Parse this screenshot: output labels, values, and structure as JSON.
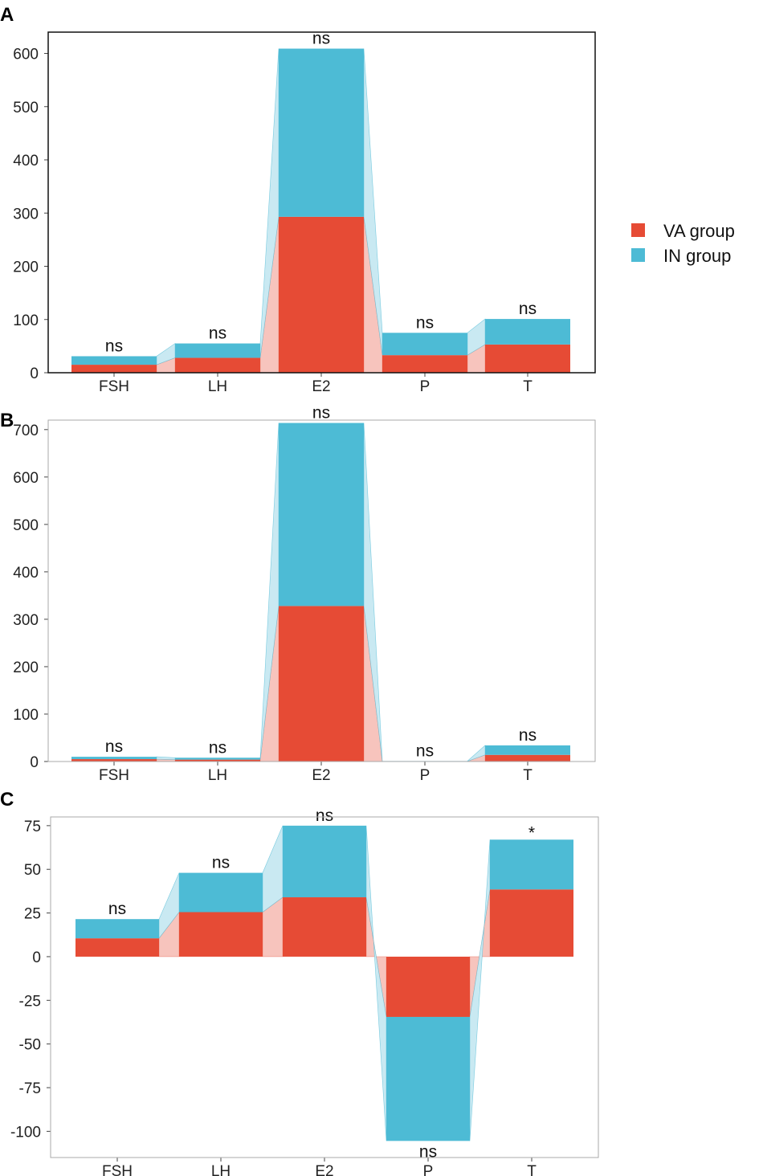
{
  "legend": {
    "items": [
      {
        "name": "VA group",
        "color": "#E64B35"
      },
      {
        "name": "IN group",
        "color": "#4DBBD5"
      }
    ],
    "placement": "right"
  },
  "colors": {
    "va": "#E64B35",
    "in": "#4DBBD5",
    "va_link": "#F7C4BD",
    "in_link": "#C9E9F2"
  },
  "chart_data": [
    {
      "panel": "A",
      "type": "bar",
      "stacked": true,
      "categories": [
        "FSH",
        "LH",
        "E2",
        "P",
        "T"
      ],
      "series": [
        {
          "name": "VA group",
          "values": [
            15,
            28,
            293,
            33,
            53
          ]
        },
        {
          "name": "IN group",
          "values": [
            16,
            27,
            316,
            42,
            48
          ]
        }
      ],
      "significance": [
        "ns",
        "ns",
        "ns",
        "ns",
        "ns"
      ],
      "yticks": [
        0,
        100,
        200,
        300,
        400,
        500,
        600
      ],
      "ylim": [
        0,
        640
      ],
      "frame": "dark"
    },
    {
      "panel": "B",
      "type": "bar",
      "stacked": true,
      "categories": [
        "FSH",
        "LH",
        "E2",
        "P",
        "T"
      ],
      "series": [
        {
          "name": "VA group",
          "values": [
            5,
            4,
            328,
            0.5,
            14
          ]
        },
        {
          "name": "IN group",
          "values": [
            5,
            4,
            386,
            0.5,
            20
          ]
        }
      ],
      "significance": [
        "ns",
        "ns",
        "ns",
        "ns",
        "ns"
      ],
      "yticks": [
        0,
        100,
        200,
        300,
        400,
        500,
        600,
        700
      ],
      "ylim": [
        0,
        720
      ],
      "frame": "light"
    },
    {
      "panel": "C",
      "type": "bar",
      "stacked": true,
      "categories": [
        "FSH",
        "LH",
        "E2",
        "P",
        "T"
      ],
      "series": [
        {
          "name": "VA group",
          "values": [
            10.5,
            25.5,
            34,
            -34.5,
            38.5
          ]
        },
        {
          "name": "IN group",
          "values": [
            11,
            22.5,
            41,
            -71,
            28.5
          ]
        }
      ],
      "significance": [
        "ns",
        "ns",
        "ns",
        "ns",
        "*"
      ],
      "yticks": [
        75,
        50,
        25,
        0,
        -25,
        -50,
        -75,
        -100
      ],
      "ylim": [
        -115,
        80
      ],
      "frame": "light"
    }
  ]
}
